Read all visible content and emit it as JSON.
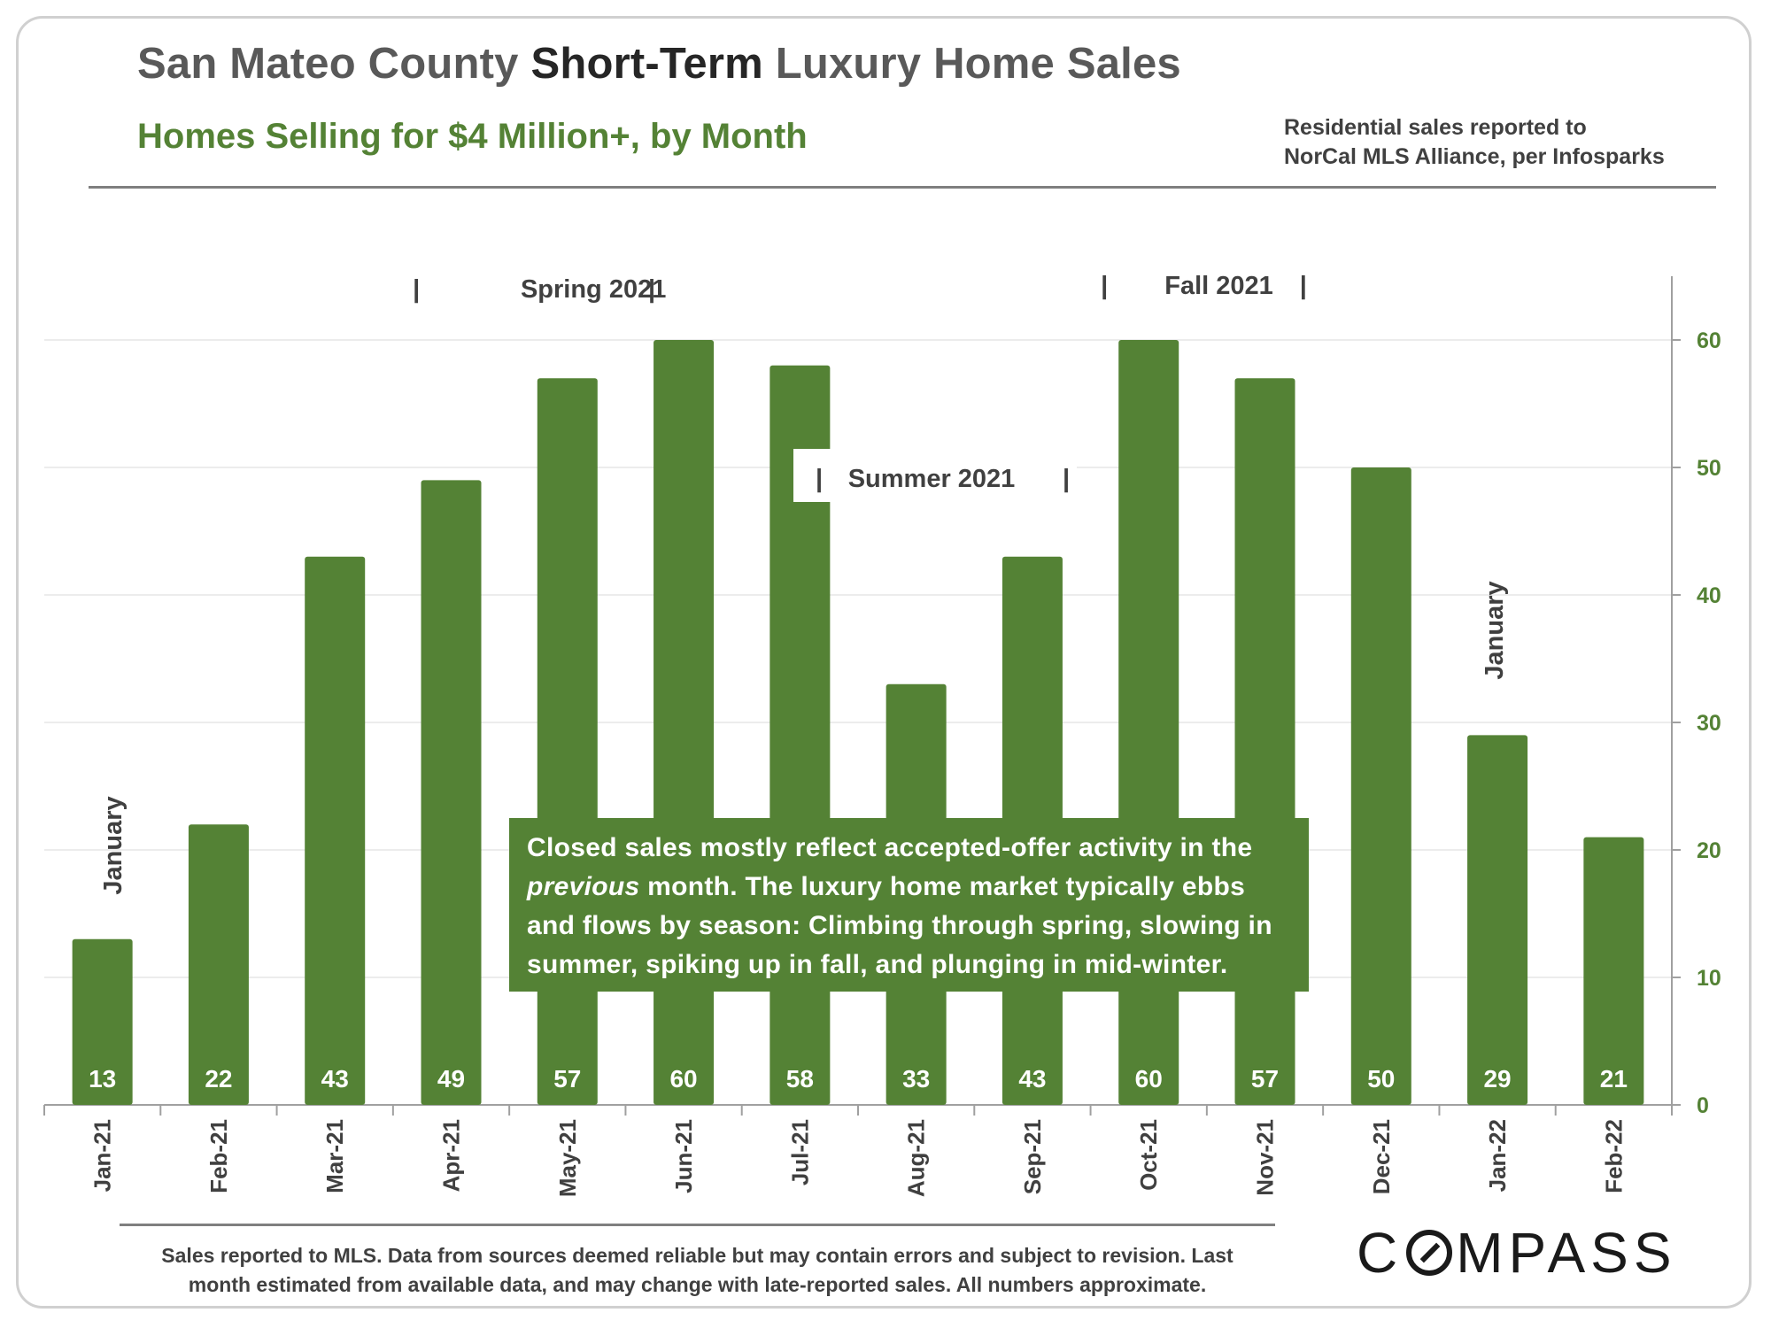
{
  "header": {
    "title_part1": "San Mateo County ",
    "title_part2": "Short-Term",
    "title_part3": " Luxury Home Sales",
    "subtitle": "Homes Selling for $4 Million+, by Month",
    "source_line1": "Residential sales reported to",
    "source_line2": "NorCal MLS Alliance, per Infosparks"
  },
  "callout": {
    "line1": "Closed sales mostly reflect accepted-offer activity in the",
    "line2_italic": "previous",
    "line2_rest": " month. The luxury home market typically ebbs",
    "line3": "and flows by season: Climbing through spring, slowing in",
    "line4": "summer, spiking up in fall, and plunging in mid-winter."
  },
  "footer": {
    "note_line1": "Sales reported to MLS. Data from sources deemed reliable but may contain errors and subject to revision.  Last",
    "note_line2": "month estimated from available data, and may change with late-reported sales. All numbers approximate.",
    "logo_left": "C",
    "logo_right": "MPASS"
  },
  "colors": {
    "bar": "#548235",
    "title": "#595959",
    "title_emphasis": "#262626",
    "subtitle": "#548235",
    "axis_tick_label": "#548235"
  },
  "chart_data": {
    "type": "bar",
    "categories": [
      "Jan-21",
      "Feb-21",
      "Mar-21",
      "Apr-21",
      "May-21",
      "Jun-21",
      "Jul-21",
      "Aug-21",
      "Sep-21",
      "Oct-21",
      "Nov-21",
      "Dec-21",
      "Jan-22",
      "Feb-22"
    ],
    "values": [
      13,
      22,
      43,
      49,
      57,
      60,
      58,
      33,
      43,
      60,
      57,
      50,
      29,
      21
    ],
    "data_labels": [
      "13",
      "22",
      "43",
      "49",
      "57",
      "60",
      "58",
      "33",
      "43",
      "60",
      "57",
      "50",
      "29",
      "21"
    ],
    "ylim": [
      0,
      65
    ],
    "y_ticks": [
      0,
      10,
      20,
      30,
      40,
      50,
      60
    ],
    "y_axis_side": "right",
    "grid": true,
    "legend": "none",
    "annotations": {
      "spring": "Spring 2021",
      "summer": "Summer 2021",
      "fall": "Fall 2021",
      "january_1": "January",
      "january_2": "January",
      "separator": "|"
    }
  }
}
